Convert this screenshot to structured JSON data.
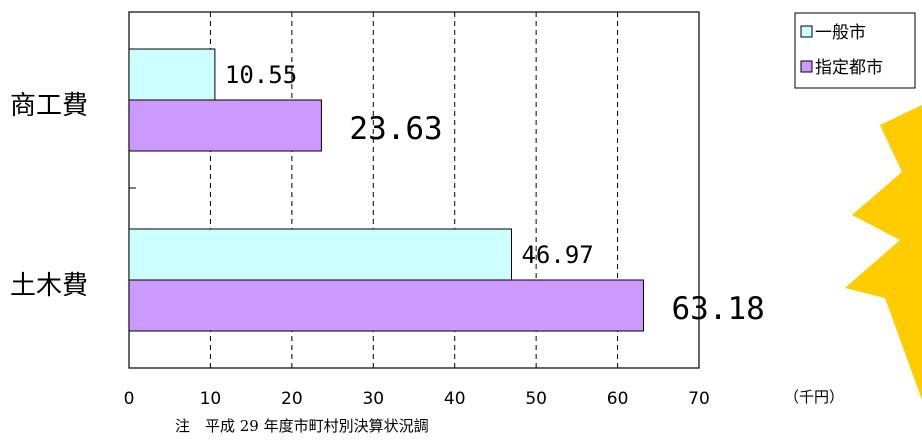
{
  "chart_data": {
    "type": "bar",
    "orientation": "horizontal",
    "categories": [
      "商工費",
      "土木費"
    ],
    "series": [
      {
        "name": "一般市",
        "values": [
          10.55,
          46.97
        ],
        "labels": [
          "10.55",
          "46.97"
        ],
        "color": "#ccffff"
      },
      {
        "name": "指定都市",
        "values": [
          23.63,
          63.18
        ],
        "labels": [
          "23.63",
          "63.18"
        ],
        "color": "#cc99ff"
      }
    ],
    "xlim": [
      0,
      70
    ],
    "xticks": [
      0,
      10,
      20,
      30,
      40,
      50,
      60,
      70
    ],
    "xunit": "（千円）",
    "grid": "vertical-dashed",
    "legend_position": "top-right",
    "note": "注　平成 29 年度市町村別決算状況調"
  },
  "decoration": {
    "starburst_color": "#ffcc00"
  }
}
